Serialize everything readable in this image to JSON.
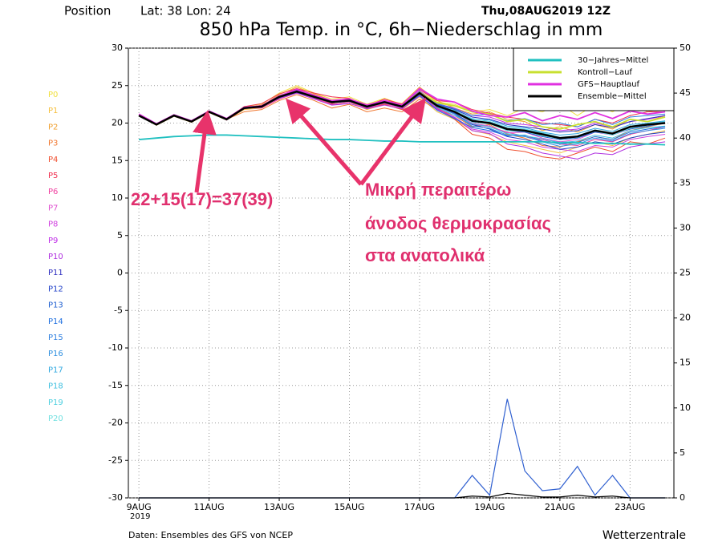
{
  "chart_data": {
    "type": "line",
    "position_label": "Position",
    "location": "Lat: 38 Lon: 24",
    "run_date": "Thu,08AUG2019 12Z",
    "title": "850 hPa Temp. in °C, 6h−Niederschlag in mm",
    "annotations": [
      "22+15(17)=37(39)",
      "Μικρή περαιτέρω",
      "άνοδος θερμοκρασίας",
      "στα ανατολικά"
    ],
    "source": "Daten: Ensembles des GFS von NCEP",
    "brand": "Wetterzentrale",
    "x_year": "2019",
    "x": [
      9,
      9.5,
      10,
      10.5,
      11,
      11.5,
      12,
      12.5,
      13,
      13.5,
      14,
      14.5,
      15,
      15.5,
      16,
      16.5,
      17,
      17.5,
      18,
      18.5,
      19,
      19.5,
      20,
      20.5,
      21,
      21.5,
      22,
      22.5,
      23,
      23.5,
      24
    ],
    "xlim": [
      8.7,
      24.25
    ],
    "xticks": [
      {
        "value": 9,
        "label": "9AUG"
      },
      {
        "value": 11,
        "label": "11AUG"
      },
      {
        "value": 13,
        "label": "13AUG"
      },
      {
        "value": 15,
        "label": "15AUG"
      },
      {
        "value": 17,
        "label": "17AUG"
      },
      {
        "value": 19,
        "label": "19AUG"
      },
      {
        "value": 21,
        "label": "21AUG"
      },
      {
        "value": 23,
        "label": "23AUG"
      }
    ],
    "ylim": [
      -30,
      30
    ],
    "yticks": [
      -30,
      -25,
      -20,
      -15,
      -10,
      -5,
      0,
      5,
      10,
      15,
      20,
      25,
      30
    ],
    "y2lim": [
      0,
      50
    ],
    "y2ticks": [
      0,
      5,
      10,
      15,
      20,
      25,
      30,
      35,
      40,
      45,
      50
    ],
    "grid": true,
    "series": [
      {
        "name": "P0",
        "color": "#f0e040",
        "values": [
          21,
          19.9,
          21.1,
          20.3,
          21.6,
          20.6,
          22.2,
          22.5,
          24,
          25,
          24,
          23.2,
          23.5,
          22.5,
          23.3,
          22.5,
          24.5,
          22.8,
          22.5,
          21.5,
          21.8,
          21,
          22,
          21.5,
          22.5,
          21,
          22.5,
          21.5,
          22.8,
          21.5,
          22
        ]
      },
      {
        "name": "P1",
        "color": "#f5c040",
        "values": [
          21,
          19.7,
          20.9,
          20.1,
          21.4,
          20.4,
          21.8,
          22,
          23.2,
          24.5,
          23.8,
          22.5,
          22.8,
          21.8,
          22.5,
          21.8,
          23.5,
          21.5,
          20.5,
          19,
          18.5,
          17.5,
          17,
          16.5,
          16,
          16.8,
          17.5,
          17,
          18,
          18.5,
          19
        ]
      },
      {
        "name": "P2",
        "color": "#f0a030",
        "values": [
          21,
          19.8,
          21,
          20.2,
          21.5,
          20.6,
          22.1,
          22.3,
          23.8,
          24.8,
          23.9,
          23,
          23.2,
          22.5,
          23,
          22.6,
          24.8,
          23,
          22,
          21.2,
          21.5,
          20.5,
          20.2,
          19,
          19.5,
          18.8,
          19.8,
          19.2,
          20.5,
          20.2,
          21
        ]
      },
      {
        "name": "P3",
        "color": "#f07830",
        "values": [
          21,
          19.9,
          21.1,
          20.2,
          21.5,
          20.5,
          21.5,
          21.8,
          23,
          23.8,
          23,
          22,
          22.5,
          21.5,
          22,
          21.5,
          23.2,
          21.8,
          21,
          19.5,
          19.8,
          18.5,
          18,
          17,
          16.8,
          17.5,
          18.2,
          17.8,
          19,
          19.5,
          20
        ]
      },
      {
        "name": "P4",
        "color": "#f05030",
        "values": [
          21,
          19.8,
          21,
          20.3,
          21.6,
          20.5,
          22,
          22.4,
          23.6,
          24.3,
          23.4,
          22.6,
          23.2,
          22,
          22.5,
          21.8,
          24.2,
          22,
          20.5,
          18.5,
          18,
          16.5,
          16.2,
          15.5,
          15.2,
          16,
          16.8,
          16.2,
          17.5,
          17.2,
          18
        ]
      },
      {
        "name": "P5",
        "color": "#f03050",
        "values": [
          21,
          19.8,
          21,
          20.2,
          21.5,
          20.5,
          22.2,
          22.6,
          23.9,
          24.6,
          24,
          23.5,
          23.3,
          22.3,
          23.2,
          22.5,
          24.5,
          23,
          22.8,
          21.8,
          21.3,
          20.8,
          20.5,
          20,
          19.8,
          19.5,
          20.5,
          20,
          21,
          21.5,
          21.5
        ]
      },
      {
        "name": "P6",
        "color": "#f040a0",
        "values": [
          21,
          19.8,
          21,
          20.2,
          21.5,
          20.5,
          22,
          22,
          23.2,
          24,
          23.3,
          22.5,
          22.8,
          22,
          22.6,
          22,
          23.8,
          22,
          21,
          19.8,
          19.5,
          18.8,
          18.2,
          17.8,
          17.2,
          17,
          17.8,
          17.5,
          18.5,
          19,
          19.5
        ]
      },
      {
        "name": "P7",
        "color": "#e050d0",
        "values": [
          21,
          19.8,
          21,
          20.2,
          21.5,
          20.4,
          21.9,
          22.2,
          23.4,
          24.2,
          23.5,
          22.9,
          23,
          22.2,
          22.8,
          22.3,
          24.1,
          22.2,
          21.2,
          20,
          19.6,
          18.7,
          18.8,
          18,
          17.5,
          17.8,
          18.8,
          18.4,
          19.2,
          19.8,
          20.2
        ]
      },
      {
        "name": "P8",
        "color": "#d040e0",
        "values": [
          21,
          19.8,
          21,
          20.2,
          21.5,
          20.5,
          22,
          22.1,
          23.5,
          24.4,
          23.6,
          22.7,
          23.1,
          22.1,
          22.7,
          22.1,
          23.9,
          21.8,
          20.8,
          19.2,
          18.8,
          17.8,
          17.5,
          16.8,
          16.5,
          16.2,
          17,
          16.8,
          17.8,
          18.2,
          18.5
        ]
      },
      {
        "name": "P9",
        "color": "#c030e8",
        "values": [
          21,
          19.8,
          21,
          20.2,
          21.5,
          20.5,
          22,
          22.3,
          23.6,
          24.1,
          23.4,
          22.9,
          22.9,
          22.3,
          22.9,
          22.4,
          24.3,
          22.6,
          22,
          21,
          20.8,
          20,
          19.8,
          19.5,
          19,
          19.2,
          20,
          19.5,
          20.2,
          20.5,
          21
        ]
      },
      {
        "name": "P10",
        "color": "#b030e0",
        "values": [
          21,
          19.8,
          21,
          20.2,
          21.5,
          20.5,
          22,
          22.2,
          23.3,
          24,
          23.2,
          22.4,
          22.6,
          21.9,
          22.4,
          21.9,
          23.6,
          21.9,
          20.7,
          19,
          18.6,
          17.2,
          16.8,
          16,
          15.6,
          15.2,
          16,
          15.8,
          16.8,
          17.2,
          17.5
        ]
      },
      {
        "name": "P11",
        "color": "#3030c0",
        "values": [
          21,
          19.8,
          21,
          20.2,
          21.5,
          20.5,
          22,
          22.2,
          23.5,
          24.2,
          23.6,
          22.8,
          23,
          22.3,
          22.8,
          22.3,
          24,
          22.5,
          21.8,
          20.8,
          20.5,
          19.8,
          19.5,
          19.2,
          18.8,
          19,
          19.8,
          19.4,
          20.2,
          20.6,
          21
        ]
      },
      {
        "name": "P12",
        "color": "#2040c8",
        "values": [
          21,
          19.8,
          21,
          20.2,
          21.5,
          20.5,
          22,
          22.2,
          23.5,
          24.3,
          23.5,
          22.8,
          23,
          22.2,
          22.8,
          22.2,
          24,
          22.3,
          21.3,
          19.8,
          19.2,
          18.2,
          17.8,
          17.2,
          16.5,
          16.8,
          17.5,
          17.2,
          18,
          18.5,
          18.8
        ]
      },
      {
        "name": "P13",
        "color": "#2060d0",
        "values": [
          21,
          19.8,
          21,
          20.2,
          21.5,
          20.5,
          22,
          22.2,
          23.5,
          24.2,
          23.5,
          22.8,
          23,
          22.2,
          22.8,
          22.2,
          24,
          22.4,
          21.6,
          20.2,
          20,
          19,
          18.8,
          18.2,
          17.8,
          18,
          18.8,
          18.5,
          19.2,
          19.6,
          20
        ]
      },
      {
        "name": "P14",
        "color": "#2070e0",
        "values": [
          21,
          19.8,
          21,
          20.2,
          21.5,
          20.5,
          22,
          22.2,
          23.4,
          24.1,
          23.4,
          22.7,
          22.9,
          22.1,
          22.7,
          22.1,
          23.7,
          21.7,
          20.6,
          19.4,
          19,
          18.3,
          18.4,
          17.6,
          17.2,
          17.4,
          18.2,
          17.8,
          18.8,
          19.2,
          19.5
        ]
      },
      {
        "name": "P15",
        "color": "#3080e0",
        "values": [
          21,
          19.8,
          21,
          20.2,
          21.5,
          20.5,
          22,
          22.2,
          23.6,
          24.3,
          23.6,
          22.9,
          23.1,
          22.3,
          22.9,
          22.3,
          24.2,
          22.6,
          21.9,
          21,
          21.2,
          20.3,
          20.6,
          19.8,
          20,
          19.5,
          20.5,
          19.8,
          20.8,
          21,
          21.2
        ]
      },
      {
        "name": "P16",
        "color": "#3090e0",
        "values": [
          21,
          19.8,
          21,
          20.2,
          21.5,
          20.5,
          22,
          22.2,
          23.5,
          24.2,
          23.5,
          22.8,
          23,
          22.2,
          22.8,
          22.2,
          24,
          22.2,
          21.2,
          19.6,
          19.3,
          18.4,
          18.2,
          17.5,
          16.9,
          17.2,
          18,
          17.6,
          18.6,
          19,
          19.3
        ]
      },
      {
        "name": "P17",
        "color": "#30a8e0",
        "values": [
          21,
          19.8,
          21,
          20.2,
          21.5,
          20.5,
          22,
          22.2,
          23.5,
          24.2,
          23.5,
          22.8,
          23,
          22.2,
          22.8,
          22.2,
          24,
          22.3,
          21.5,
          20.5,
          20.4,
          19.6,
          19.4,
          18.8,
          18.4,
          18.6,
          19.3,
          18.9,
          19.8,
          20,
          20.3
        ]
      },
      {
        "name": "P18",
        "color": "#40c0e0",
        "values": [
          21,
          19.8,
          21,
          20.2,
          21.5,
          20.5,
          22,
          22.2,
          23.5,
          24.2,
          23.5,
          22.8,
          23,
          22.2,
          22.8,
          22.2,
          24,
          22.1,
          21,
          19.9,
          19.5,
          18.6,
          18.3,
          17.9,
          17.4,
          17.6,
          18.4,
          18,
          19,
          19.4,
          19.6
        ]
      },
      {
        "name": "P19",
        "color": "#50d0e0",
        "values": [
          21,
          19.8,
          21,
          20.2,
          21.5,
          20.5,
          22,
          22.2,
          23.5,
          24.2,
          23.5,
          22.8,
          23,
          22.2,
          22.8,
          22.2,
          24,
          22.4,
          21.7,
          20.6,
          20.2,
          19.4,
          19.2,
          18.7,
          18.1,
          18.3,
          19.1,
          18.7,
          19.6,
          19.9,
          20.2
        ]
      },
      {
        "name": "P20",
        "color": "#70e0e0",
        "values": [
          21,
          19.8,
          21,
          20.2,
          21.5,
          20.5,
          22,
          22.2,
          23.5,
          24.2,
          23.5,
          22.8,
          23,
          22.2,
          22.8,
          22.2,
          24,
          22.3,
          21.4,
          20.1,
          19.9,
          19,
          18.9,
          18.3,
          17.9,
          18.1,
          18.9,
          18.4,
          19.3,
          19.7,
          20
        ]
      }
    ],
    "main_series": [
      {
        "name": "30−Jahres−Mittel",
        "color": "#20c0c0",
        "values": [
          17.8,
          18,
          18.2,
          18.3,
          18.4,
          18.4,
          18.3,
          18.2,
          18.1,
          18,
          17.9,
          17.8,
          17.8,
          17.7,
          17.6,
          17.6,
          17.5,
          17.5,
          17.5,
          17.5,
          17.5,
          17.5,
          17.5,
          17.5,
          17.4,
          17.4,
          17.3,
          17.3,
          17.2,
          17.2,
          17.1
        ]
      },
      {
        "name": "Kontroll−Lauf",
        "color": "#c8e030",
        "values": [
          21,
          19.8,
          21,
          20.2,
          21.5,
          20.5,
          22,
          22.2,
          23.5,
          24.2,
          23.6,
          22.9,
          23.1,
          22.3,
          22.9,
          22.3,
          24.1,
          22.7,
          22.3,
          21.5,
          21.2,
          20.2,
          20.5,
          19.5,
          19.2,
          19.8,
          20.2,
          19.5,
          20.5,
          20.2,
          20.8
        ]
      },
      {
        "name": "GFS−Hauptlauf",
        "color": "#e030e0",
        "values": [
          21.2,
          19.9,
          21.1,
          20.3,
          21.6,
          20.6,
          22.1,
          22.3,
          23.6,
          24.5,
          23.7,
          23,
          23.2,
          22.4,
          23,
          22.4,
          24.6,
          23.2,
          22.8,
          21.6,
          21,
          20.8,
          21.4,
          20.3,
          21,
          20.5,
          21.4,
          20.6,
          21.6,
          21.2,
          21.5
        ]
      },
      {
        "name": "Ensemble−Mittel",
        "color": "#000000",
        "values": [
          21,
          19.8,
          21,
          20.2,
          21.5,
          20.5,
          22,
          22.2,
          23.5,
          24.2,
          23.5,
          22.8,
          23,
          22.2,
          22.8,
          22.2,
          24,
          22.3,
          21.5,
          20.3,
          20,
          19.2,
          19,
          18.5,
          18,
          18.2,
          19,
          18.6,
          19.5,
          19.8,
          20
        ]
      }
    ],
    "precip_series": [
      {
        "color": "#3060d0",
        "axis": "y2",
        "values": [
          0,
          0,
          0,
          0,
          0,
          0,
          0,
          0,
          0,
          0,
          0,
          0,
          0,
          0,
          0,
          0,
          0,
          0,
          0,
          2.5,
          0.3,
          11,
          3,
          0.8,
          1,
          3.5,
          0.3,
          2.5,
          0,
          0,
          0
        ]
      },
      {
        "color": "#000000",
        "axis": "y2",
        "values": [
          0,
          0,
          0,
          0,
          0,
          0,
          0,
          0,
          0,
          0,
          0,
          0,
          0,
          0,
          0,
          0,
          0,
          0,
          0,
          0.2,
          0.1,
          0.5,
          0.3,
          0.1,
          0.1,
          0.3,
          0.1,
          0.2,
          0,
          0,
          0
        ]
      }
    ]
  }
}
